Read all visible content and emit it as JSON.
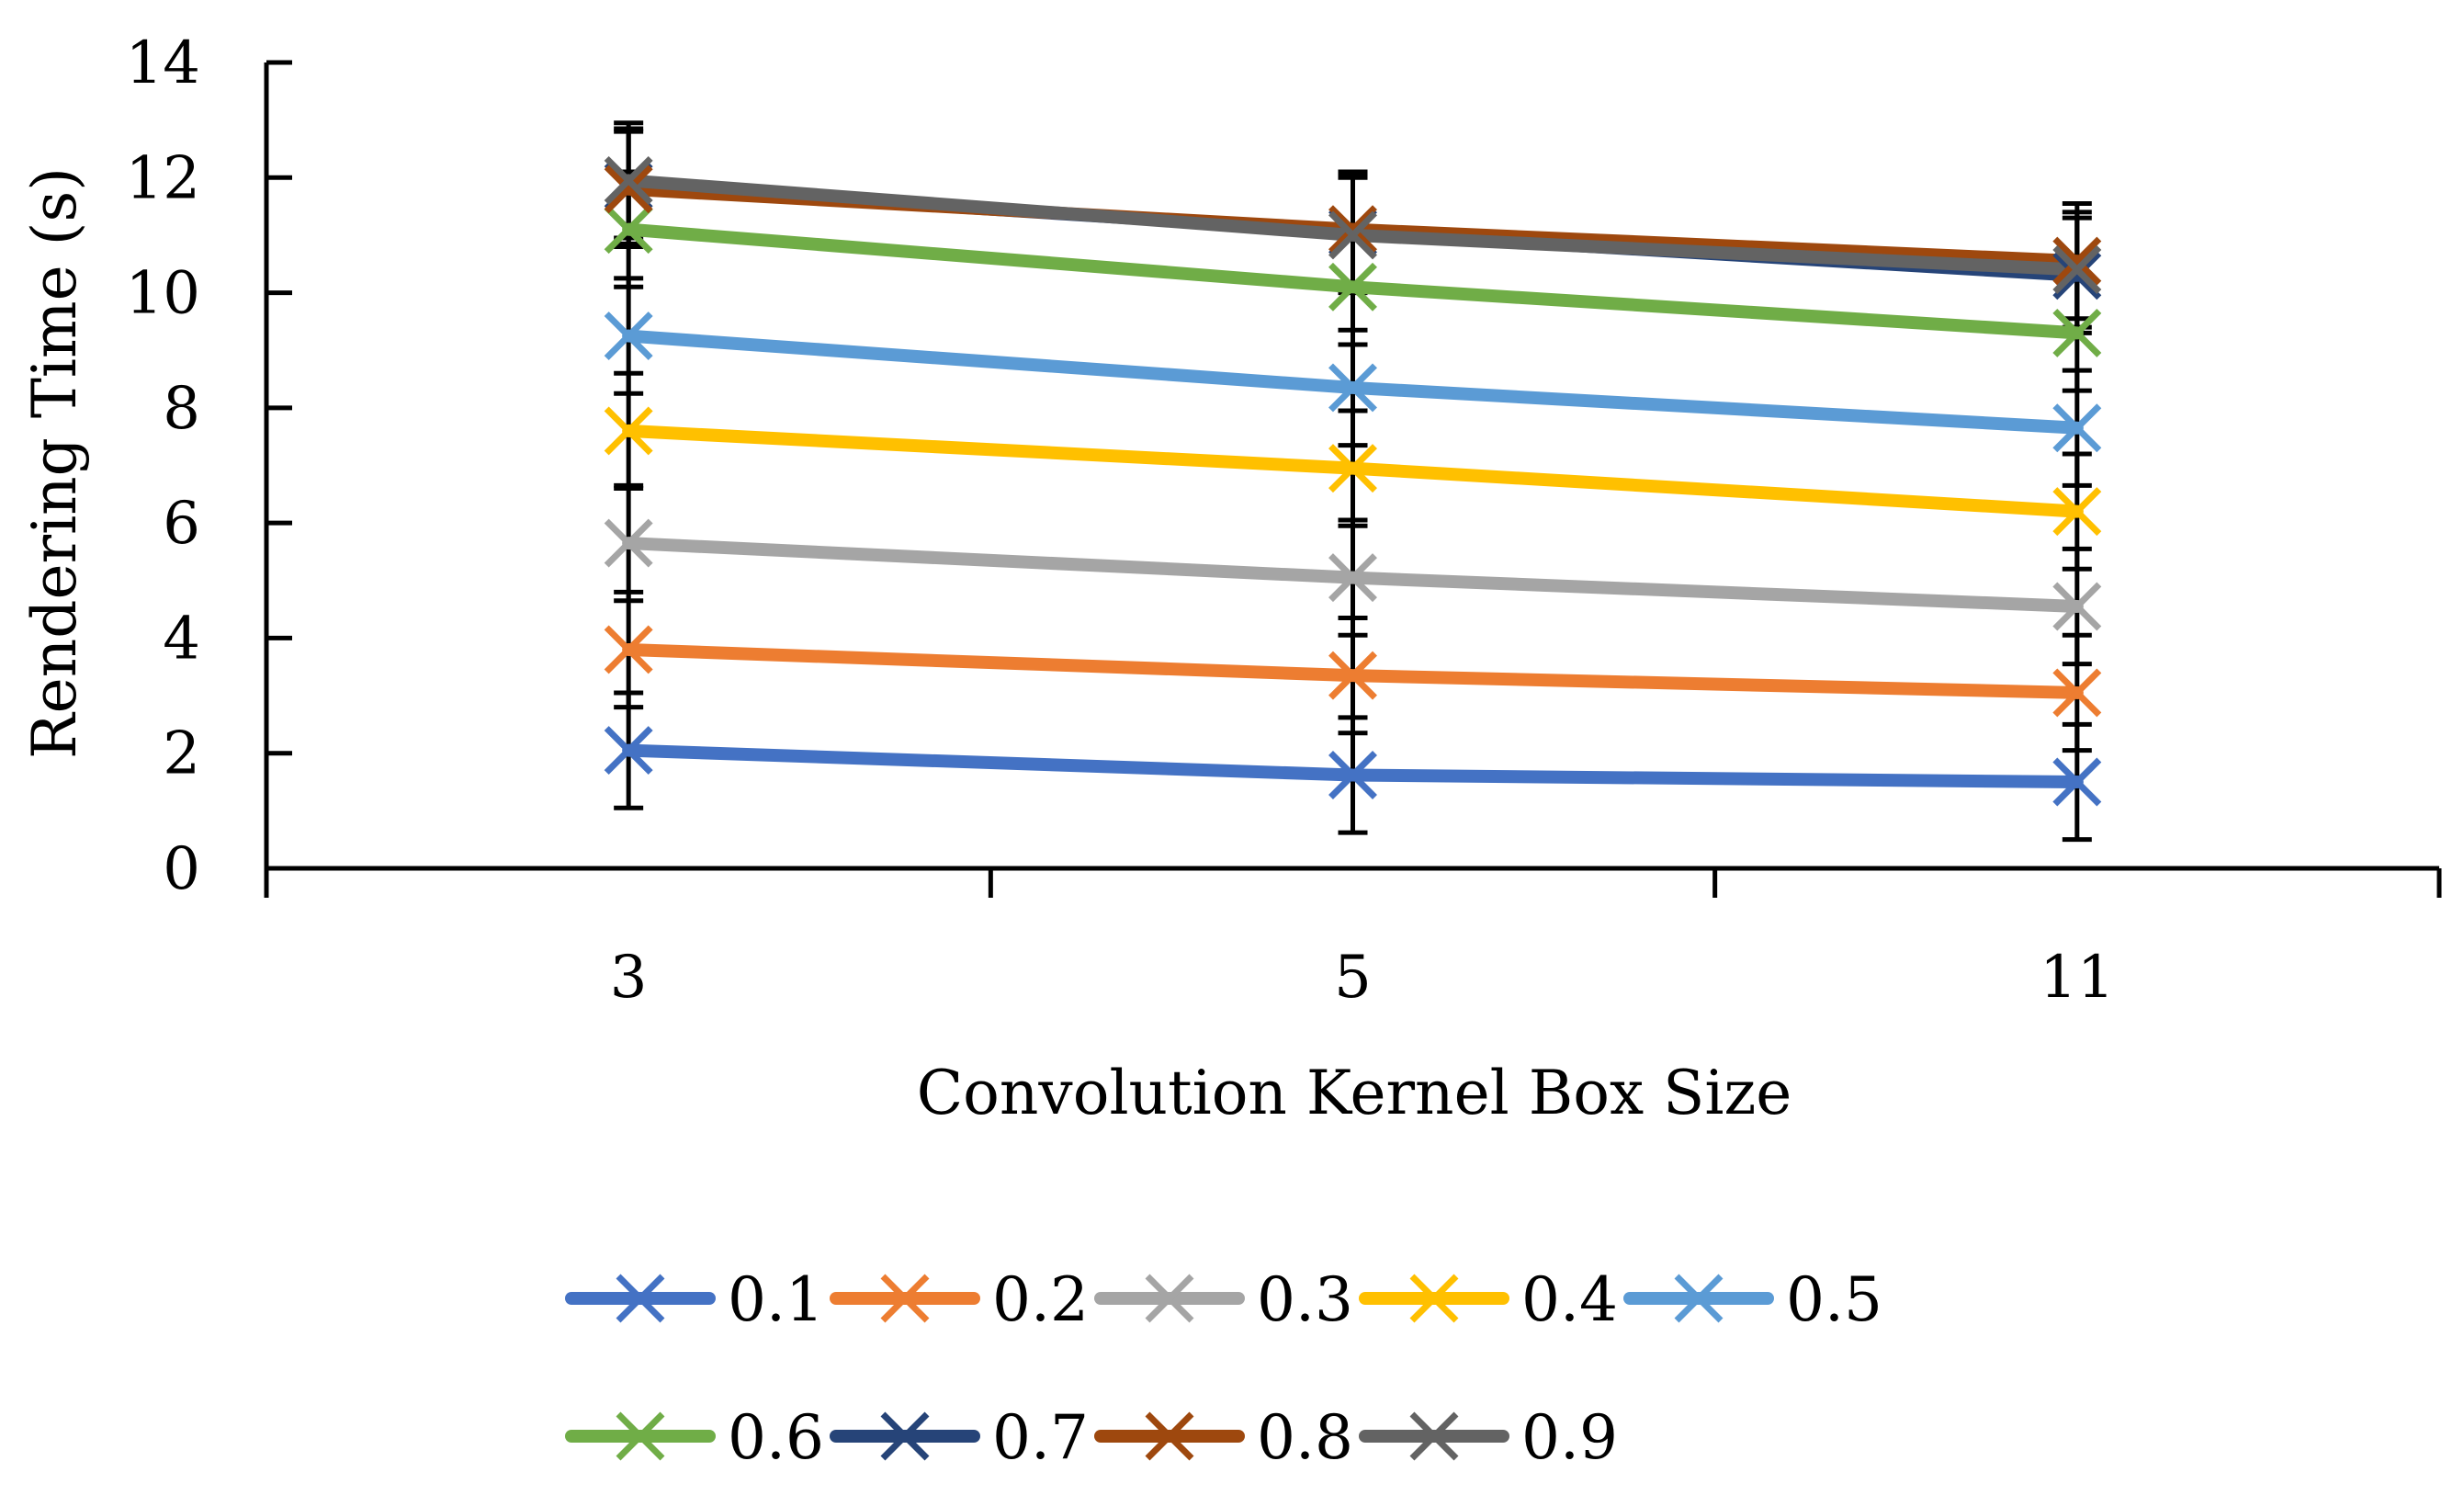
{
  "chart_data": {
    "type": "line",
    "title": "",
    "xlabel": "Convolution Kernel Box Size",
    "ylabel": "Rendering Time (s)",
    "categories": [
      "3",
      "5",
      "11"
    ],
    "ylim": [
      0,
      14
    ],
    "yticks": [
      "0",
      "2",
      "4",
      "6",
      "8",
      "10",
      "12",
      "14"
    ],
    "grid": false,
    "legend_position": "bottom",
    "series": [
      {
        "name": "0.1",
        "color": "#4472C4",
        "values": [
          2.05,
          1.62,
          1.5
        ],
        "errors": [
          1.0,
          1.0,
          1.0
        ]
      },
      {
        "name": "0.2",
        "color": "#ED7D31",
        "values": [
          3.8,
          3.35,
          3.05
        ],
        "errors": [
          1.0,
          1.0,
          1.0
        ]
      },
      {
        "name": "0.3",
        "color": "#A5A5A5",
        "values": [
          5.65,
          5.05,
          4.55
        ],
        "errors": [
          1.0,
          1.0,
          1.0
        ]
      },
      {
        "name": "0.4",
        "color": "#FFC000",
        "values": [
          7.6,
          6.95,
          6.2
        ],
        "errors": [
          1.0,
          1.0,
          1.0
        ]
      },
      {
        "name": "0.5",
        "color": "#5B9BD5",
        "values": [
          9.25,
          8.35,
          7.65
        ],
        "errors": [
          1.0,
          1.0,
          1.0
        ]
      },
      {
        "name": "0.6",
        "color": "#70AD47",
        "values": [
          11.1,
          10.1,
          9.3
        ],
        "errors": [
          1.0,
          1.0,
          1.0
        ]
      },
      {
        "name": "0.7",
        "color": "#264478",
        "values": [
          11.85,
          11.05,
          10.3
        ],
        "errors": [
          1.0,
          1.0,
          1.0
        ]
      },
      {
        "name": "0.8",
        "color": "#9E480E",
        "values": [
          11.8,
          11.1,
          10.55
        ],
        "errors": [
          1.0,
          1.0,
          1.0
        ]
      },
      {
        "name": "0.9",
        "color": "#636363",
        "values": [
          11.95,
          11.0,
          10.4
        ],
        "errors": [
          1.0,
          1.0,
          1.0
        ]
      }
    ]
  }
}
